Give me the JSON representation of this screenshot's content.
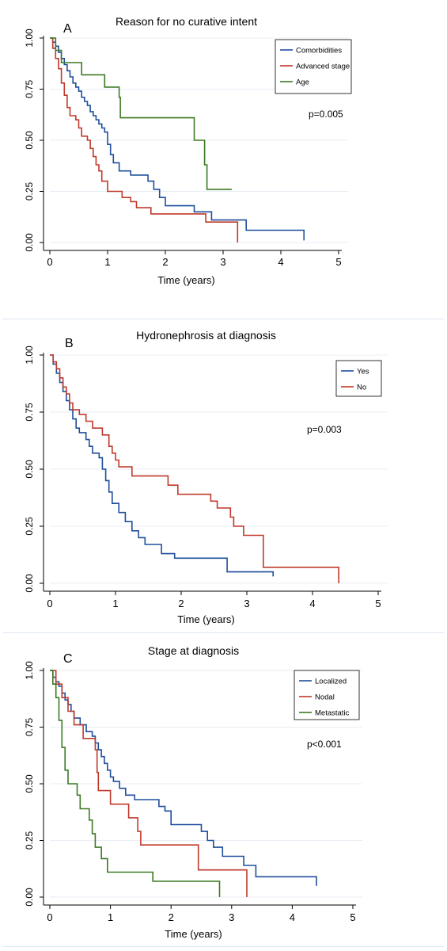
{
  "chart_data": [
    {
      "type": "line",
      "panel_label": "A",
      "title": "Reason for no curative intent",
      "xlabel": "Time (years)",
      "ylabel": "",
      "xlim": [
        0,
        5
      ],
      "ylim": [
        0,
        1
      ],
      "x_ticks": [
        "0",
        "1",
        "2",
        "3",
        "4",
        "5"
      ],
      "y_ticks": [
        "0.00",
        "0.25",
        "0.50",
        "0.75",
        "1.00"
      ],
      "grid": true,
      "legend_position": "top-right",
      "annotation": "p=0.005",
      "series": [
        {
          "name": "Comorbidities",
          "color": "#1f4e9c",
          "points": [
            [
              0,
              1
            ],
            [
              0.05,
              0.98
            ],
            [
              0.1,
              0.96
            ],
            [
              0.15,
              0.93
            ],
            [
              0.2,
              0.9
            ],
            [
              0.25,
              0.87
            ],
            [
              0.3,
              0.84
            ],
            [
              0.35,
              0.81
            ],
            [
              0.4,
              0.78
            ],
            [
              0.45,
              0.76
            ],
            [
              0.5,
              0.74
            ],
            [
              0.55,
              0.71
            ],
            [
              0.6,
              0.69
            ],
            [
              0.65,
              0.67
            ],
            [
              0.7,
              0.64
            ],
            [
              0.75,
              0.62
            ],
            [
              0.8,
              0.6
            ],
            [
              0.85,
              0.58
            ],
            [
              0.9,
              0.56
            ],
            [
              0.95,
              0.54
            ],
            [
              1,
              0.48
            ],
            [
              1.05,
              0.43
            ],
            [
              1.1,
              0.39
            ],
            [
              1.2,
              0.35
            ],
            [
              1.35,
              0.35
            ],
            [
              1.4,
              0.33
            ],
            [
              1.6,
              0.33
            ],
            [
              1.7,
              0.3
            ],
            [
              1.8,
              0.26
            ],
            [
              1.9,
              0.22
            ],
            [
              2,
              0.18
            ],
            [
              2.5,
              0.15
            ],
            [
              2.8,
              0.11
            ],
            [
              3.4,
              0.06
            ],
            [
              4.4,
              0.06
            ],
            [
              4.4,
              0.01
            ]
          ]
        },
        {
          "name": "Advanced stage",
          "color": "#c0392b",
          "points": [
            [
              0,
              1
            ],
            [
              0.05,
              0.95
            ],
            [
              0.1,
              0.9
            ],
            [
              0.15,
              0.85
            ],
            [
              0.2,
              0.78
            ],
            [
              0.25,
              0.72
            ],
            [
              0.3,
              0.66
            ],
            [
              0.35,
              0.62
            ],
            [
              0.45,
              0.6
            ],
            [
              0.5,
              0.56
            ],
            [
              0.55,
              0.52
            ],
            [
              0.65,
              0.5
            ],
            [
              0.7,
              0.46
            ],
            [
              0.75,
              0.42
            ],
            [
              0.8,
              0.38
            ],
            [
              0.85,
              0.35
            ],
            [
              0.9,
              0.3
            ],
            [
              1,
              0.25
            ],
            [
              1.25,
              0.22
            ],
            [
              1.4,
              0.2
            ],
            [
              1.5,
              0.17
            ],
            [
              1.75,
              0.14
            ],
            [
              2.7,
              0.1
            ],
            [
              3.25,
              0.1
            ],
            [
              3.25,
              0
            ]
          ]
        },
        {
          "name": "Age",
          "color": "#3b7a23",
          "points": [
            [
              0,
              1
            ],
            [
              0.1,
              0.94
            ],
            [
              0.2,
              0.88
            ],
            [
              0.55,
              0.82
            ],
            [
              0.95,
              0.76
            ],
            [
              1.2,
              0.71
            ],
            [
              1.22,
              0.61
            ],
            [
              2.5,
              0.5
            ],
            [
              2.68,
              0.38
            ],
            [
              2.72,
              0.26
            ],
            [
              3.15,
              0.26
            ]
          ]
        }
      ]
    },
    {
      "type": "line",
      "panel_label": "B",
      "title": "Hydronephrosis at diagnosis",
      "xlabel": "Time (years)",
      "ylabel": "",
      "xlim": [
        0,
        5
      ],
      "ylim": [
        0,
        1
      ],
      "x_ticks": [
        "0",
        "1",
        "2",
        "3",
        "4",
        "5"
      ],
      "y_ticks": [
        "0.00",
        "0.25",
        "0.50",
        "0.75",
        "1.00"
      ],
      "grid": true,
      "legend_position": "top-right",
      "annotation": "p=0.003",
      "series": [
        {
          "name": "Yes",
          "color": "#1f4e9c",
          "points": [
            [
              0,
              1
            ],
            [
              0.05,
              0.96
            ],
            [
              0.1,
              0.92
            ],
            [
              0.15,
              0.88
            ],
            [
              0.2,
              0.84
            ],
            [
              0.25,
              0.8
            ],
            [
              0.3,
              0.76
            ],
            [
              0.35,
              0.72
            ],
            [
              0.4,
              0.68
            ],
            [
              0.45,
              0.66
            ],
            [
              0.55,
              0.63
            ],
            [
              0.6,
              0.6
            ],
            [
              0.65,
              0.57
            ],
            [
              0.75,
              0.55
            ],
            [
              0.8,
              0.5
            ],
            [
              0.85,
              0.45
            ],
            [
              0.9,
              0.4
            ],
            [
              0.95,
              0.35
            ],
            [
              1.05,
              0.31
            ],
            [
              1.15,
              0.27
            ],
            [
              1.25,
              0.23
            ],
            [
              1.35,
              0.2
            ],
            [
              1.45,
              0.17
            ],
            [
              1.7,
              0.13
            ],
            [
              1.9,
              0.11
            ],
            [
              2.7,
              0.05
            ],
            [
              3.4,
              0.05
            ],
            [
              3.4,
              0.03
            ]
          ]
        },
        {
          "name": "No",
          "color": "#c0392b",
          "points": [
            [
              0,
              1
            ],
            [
              0.05,
              0.97
            ],
            [
              0.1,
              0.94
            ],
            [
              0.15,
              0.9
            ],
            [
              0.2,
              0.86
            ],
            [
              0.25,
              0.83
            ],
            [
              0.3,
              0.79
            ],
            [
              0.35,
              0.76
            ],
            [
              0.45,
              0.74
            ],
            [
              0.55,
              0.71
            ],
            [
              0.65,
              0.68
            ],
            [
              0.8,
              0.65
            ],
            [
              0.9,
              0.6
            ],
            [
              0.95,
              0.57
            ],
            [
              1,
              0.54
            ],
            [
              1.05,
              0.51
            ],
            [
              1.25,
              0.47
            ],
            [
              1.8,
              0.43
            ],
            [
              1.95,
              0.39
            ],
            [
              2.45,
              0.36
            ],
            [
              2.55,
              0.33
            ],
            [
              2.75,
              0.29
            ],
            [
              2.8,
              0.25
            ],
            [
              2.95,
              0.21
            ],
            [
              3.25,
              0.07
            ],
            [
              4.4,
              0.07
            ],
            [
              4.4,
              0
            ]
          ]
        }
      ]
    },
    {
      "type": "line",
      "panel_label": "C",
      "title": "Stage at diagnosis",
      "xlabel": "Time (years)",
      "ylabel": "",
      "xlim": [
        0,
        5
      ],
      "ylim": [
        0,
        1
      ],
      "x_ticks": [
        "0",
        "1",
        "2",
        "3",
        "4",
        "5"
      ],
      "y_ticks": [
        "0.00",
        "0.25",
        "0.50",
        "0.75",
        "1.00"
      ],
      "grid": true,
      "legend_position": "top-right",
      "annotation": "p<0.001",
      "series": [
        {
          "name": "Localized",
          "color": "#1f4e9c",
          "points": [
            [
              0,
              1
            ],
            [
              0.05,
              0.97
            ],
            [
              0.1,
              0.95
            ],
            [
              0.15,
              0.93
            ],
            [
              0.2,
              0.9
            ],
            [
              0.25,
              0.87
            ],
            [
              0.3,
              0.85
            ],
            [
              0.35,
              0.82
            ],
            [
              0.4,
              0.79
            ],
            [
              0.5,
              0.76
            ],
            [
              0.6,
              0.73
            ],
            [
              0.7,
              0.71
            ],
            [
              0.75,
              0.68
            ],
            [
              0.8,
              0.65
            ],
            [
              0.85,
              0.62
            ],
            [
              0.9,
              0.59
            ],
            [
              0.95,
              0.56
            ],
            [
              1,
              0.53
            ],
            [
              1.05,
              0.51
            ],
            [
              1.15,
              0.48
            ],
            [
              1.25,
              0.45
            ],
            [
              1.4,
              0.43
            ],
            [
              1.8,
              0.4
            ],
            [
              1.9,
              0.38
            ],
            [
              2,
              0.32
            ],
            [
              2.5,
              0.29
            ],
            [
              2.6,
              0.25
            ],
            [
              2.7,
              0.22
            ],
            [
              2.85,
              0.18
            ],
            [
              3.2,
              0.14
            ],
            [
              3.4,
              0.09
            ],
            [
              4.4,
              0.09
            ],
            [
              4.4,
              0.05
            ]
          ]
        },
        {
          "name": "Nodal",
          "color": "#c0392b",
          "points": [
            [
              0,
              1
            ],
            [
              0.1,
              0.94
            ],
            [
              0.2,
              0.88
            ],
            [
              0.3,
              0.82
            ],
            [
              0.4,
              0.76
            ],
            [
              0.55,
              0.7
            ],
            [
              0.75,
              0.65
            ],
            [
              0.78,
              0.55
            ],
            [
              0.8,
              0.47
            ],
            [
              1,
              0.41
            ],
            [
              1.3,
              0.35
            ],
            [
              1.45,
              0.29
            ],
            [
              1.5,
              0.23
            ],
            [
              2.45,
              0.12
            ],
            [
              3.25,
              0.12
            ],
            [
              3.25,
              0
            ]
          ]
        },
        {
          "name": "Metastatic",
          "color": "#3b7a23",
          "points": [
            [
              0,
              1
            ],
            [
              0.05,
              0.94
            ],
            [
              0.1,
              0.88
            ],
            [
              0.15,
              0.78
            ],
            [
              0.2,
              0.66
            ],
            [
              0.25,
              0.56
            ],
            [
              0.3,
              0.5
            ],
            [
              0.45,
              0.45
            ],
            [
              0.5,
              0.39
            ],
            [
              0.65,
              0.34
            ],
            [
              0.7,
              0.28
            ],
            [
              0.75,
              0.22
            ],
            [
              0.85,
              0.17
            ],
            [
              0.95,
              0.11
            ],
            [
              1.2,
              0.11
            ],
            [
              1.7,
              0.07
            ],
            [
              2.8,
              0.07
            ],
            [
              2.8,
              0
            ]
          ]
        }
      ]
    }
  ]
}
